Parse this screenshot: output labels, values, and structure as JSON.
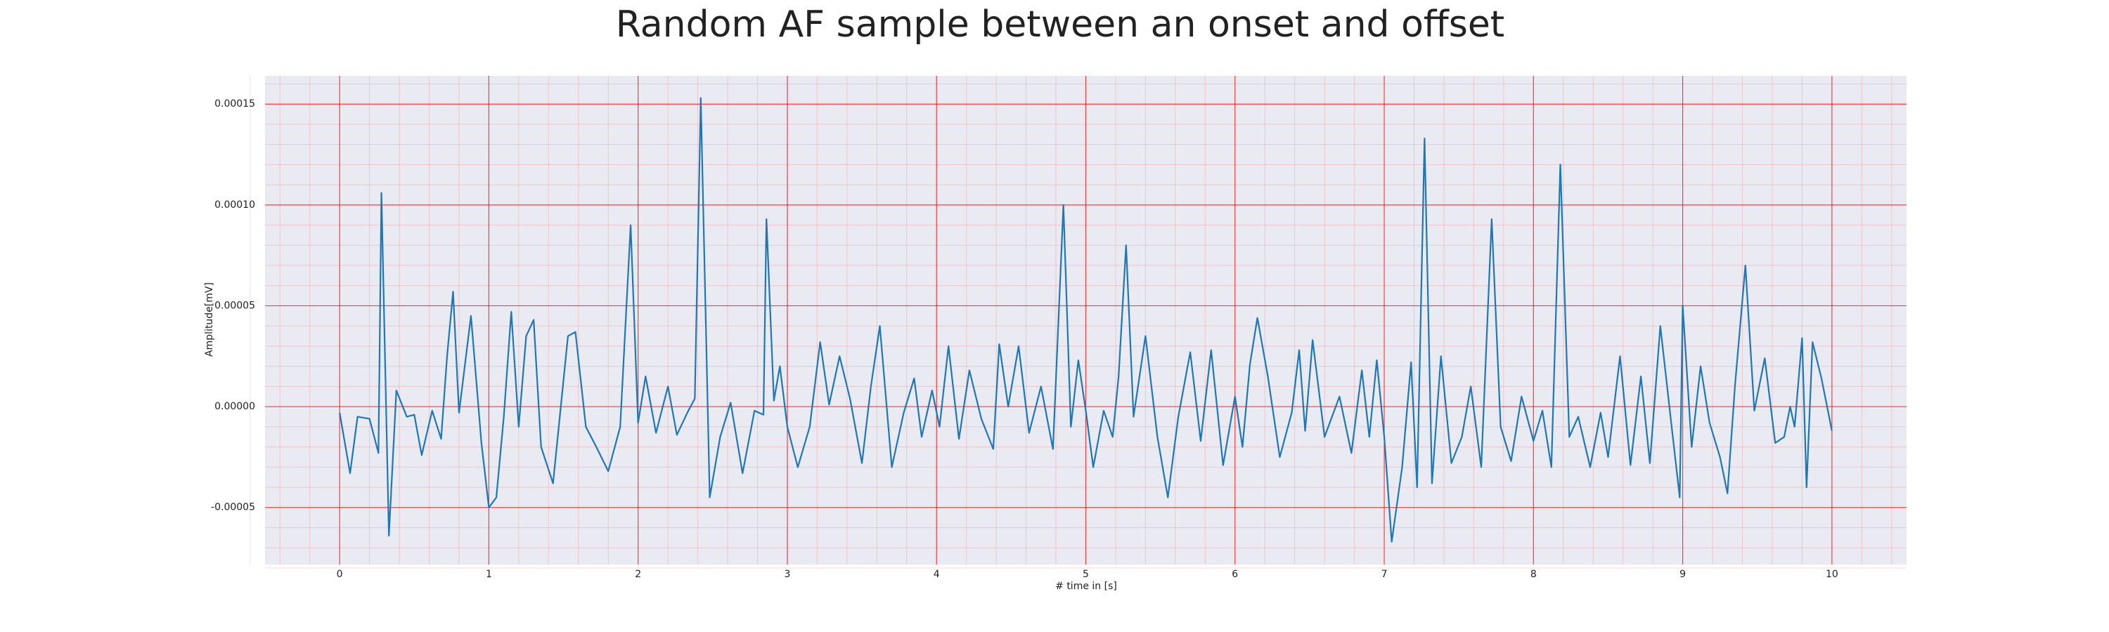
{
  "chart_data": {
    "type": "line",
    "title": "Random AF sample between an onset and offset",
    "xlabel": "# time in [s]",
    "ylabel": "Amplitude[mV]",
    "x": [
      0.0,
      0.07,
      0.12,
      0.2,
      0.26,
      0.28,
      0.33,
      0.38,
      0.45,
      0.5,
      0.55,
      0.62,
      0.68,
      0.72,
      0.76,
      0.8,
      0.88,
      0.95,
      1.0,
      1.05,
      1.1,
      1.15,
      1.2,
      1.25,
      1.3,
      1.35,
      1.43,
      1.53,
      1.58,
      1.65,
      1.72,
      1.8,
      1.88,
      1.95,
      2.0,
      2.05,
      2.12,
      2.2,
      2.26,
      2.33,
      2.38,
      2.42,
      2.48,
      2.55,
      2.62,
      2.7,
      2.78,
      2.84,
      2.86,
      2.91,
      2.95,
      3.0,
      3.07,
      3.15,
      3.22,
      3.28,
      3.35,
      3.42,
      3.5,
      3.56,
      3.62,
      3.7,
      3.78,
      3.85,
      3.9,
      3.97,
      4.02,
      4.08,
      4.15,
      4.22,
      4.3,
      4.38,
      4.42,
      4.48,
      4.55,
      4.62,
      4.7,
      4.78,
      4.85,
      4.9,
      4.95,
      5.0,
      5.05,
      5.12,
      5.18,
      5.22,
      5.27,
      5.32,
      5.4,
      5.48,
      5.55,
      5.62,
      5.7,
      5.77,
      5.84,
      5.92,
      6.0,
      6.05,
      6.1,
      6.15,
      6.22,
      6.3,
      6.38,
      6.43,
      6.47,
      6.52,
      6.6,
      6.7,
      6.78,
      6.85,
      6.9,
      6.95,
      7.0,
      7.05,
      7.12,
      7.18,
      7.22,
      7.27,
      7.32,
      7.38,
      7.45,
      7.52,
      7.58,
      7.65,
      7.72,
      7.78,
      7.85,
      7.92,
      8.0,
      8.06,
      8.12,
      8.18,
      8.24,
      8.3,
      8.38,
      8.45,
      8.5,
      8.58,
      8.65,
      8.72,
      8.78,
      8.85,
      8.92,
      8.98,
      9.0,
      9.06,
      9.12,
      9.18,
      9.25,
      9.3,
      9.35,
      9.42,
      9.48,
      9.55,
      9.62,
      9.68,
      9.72,
      9.75,
      9.8,
      9.83,
      9.87,
      9.93,
      10.0
    ],
    "series": [
      {
        "color": "#1f77b4",
        "values": [
          -3e-06,
          -3.3e-05,
          -5e-06,
          -6e-06,
          -2.3e-05,
          0.000106,
          -6.4e-05,
          8e-06,
          -5e-06,
          -4e-06,
          -2.4e-05,
          -2e-06,
          -1.6e-05,
          2.5e-05,
          5.7e-05,
          -3e-06,
          4.5e-05,
          -1.8e-05,
          -5e-05,
          -4.5e-05,
          -5e-06,
          4.7e-05,
          -1e-05,
          3.5e-05,
          4.3e-05,
          -2e-05,
          -3.8e-05,
          3.5e-05,
          3.7e-05,
          -1e-05,
          -2e-05,
          -3.2e-05,
          -1e-05,
          9e-05,
          -8e-06,
          1.5e-05,
          -1.3e-05,
          1e-05,
          -1.4e-05,
          -3e-06,
          4e-06,
          0.000153,
          -4.5e-05,
          -1.5e-05,
          2e-06,
          -3.3e-05,
          -2e-06,
          -4e-06,
          9.3e-05,
          3e-06,
          2e-05,
          -1e-05,
          -3e-05,
          -1e-05,
          3.2e-05,
          1e-06,
          2.5e-05,
          4e-06,
          -2.8e-05,
          1e-05,
          4e-05,
          -3e-05,
          -3e-06,
          1.4e-05,
          -1.5e-05,
          8e-06,
          -1e-05,
          3e-05,
          -1.6e-05,
          1.8e-05,
          -6e-06,
          -2.1e-05,
          3.1e-05,
          0.0,
          3e-05,
          -1.3e-05,
          1e-05,
          -2.1e-05,
          0.0001,
          -1e-05,
          2.3e-05,
          -2e-06,
          -3e-05,
          -2e-06,
          -1.5e-05,
          1.5e-05,
          8e-05,
          -5e-06,
          3.5e-05,
          -1.5e-05,
          -4.5e-05,
          -5e-06,
          2.7e-05,
          -1.7e-05,
          2.8e-05,
          -2.9e-05,
          5e-06,
          -2e-05,
          2.1e-05,
          4.4e-05,
          1.5e-05,
          -2.5e-05,
          -3e-06,
          2.8e-05,
          -1.2e-05,
          3.3e-05,
          -1.5e-05,
          5e-06,
          -2.3e-05,
          1.8e-05,
          -1.5e-05,
          2.3e-05,
          -1.5e-05,
          -6.7e-05,
          -3e-05,
          2.2e-05,
          -4e-05,
          0.000133,
          -3.8e-05,
          2.5e-05,
          -2.8e-05,
          -1.5e-05,
          1e-05,
          -3e-05,
          9.3e-05,
          -1e-05,
          -2.7e-05,
          5e-06,
          -1.7e-05,
          -2e-06,
          -3e-05,
          0.00012,
          -1.5e-05,
          -5e-06,
          -3e-05,
          -3e-06,
          -2.5e-05,
          2.5e-05,
          -2.9e-05,
          1.5e-05,
          -2.8e-05,
          4e-05,
          -6e-06,
          -4.5e-05,
          5e-05,
          -2e-05,
          2e-05,
          -8e-06,
          -2.5e-05,
          -4.3e-05,
          1e-05,
          7e-05,
          -2e-06,
          2.4e-05,
          -1.8e-05,
          -1.5e-05,
          0.0,
          -1e-05,
          3.4e-05,
          -4e-05,
          3.2e-05,
          1.4e-05,
          -1.2e-05
        ]
      }
    ],
    "xlim": [
      -0.5,
      10.5
    ],
    "ylim": [
      -7.83e-05,
      0.000164
    ],
    "xticks": [
      0,
      1,
      2,
      3,
      4,
      5,
      6,
      7,
      8,
      9,
      10
    ],
    "yticks": [
      {
        "value": -5e-05,
        "label": "-0.00005"
      },
      {
        "value": 0,
        "label": "0.00000"
      },
      {
        "value": 5e-05,
        "label": "0.00005"
      },
      {
        "value": 0.0001,
        "label": "0.00010"
      },
      {
        "value": 0.00015,
        "label": "0.00015"
      }
    ],
    "grid": true,
    "minor_grid": true,
    "grid_color": "#ff0000",
    "background": "#eaeaf2"
  }
}
